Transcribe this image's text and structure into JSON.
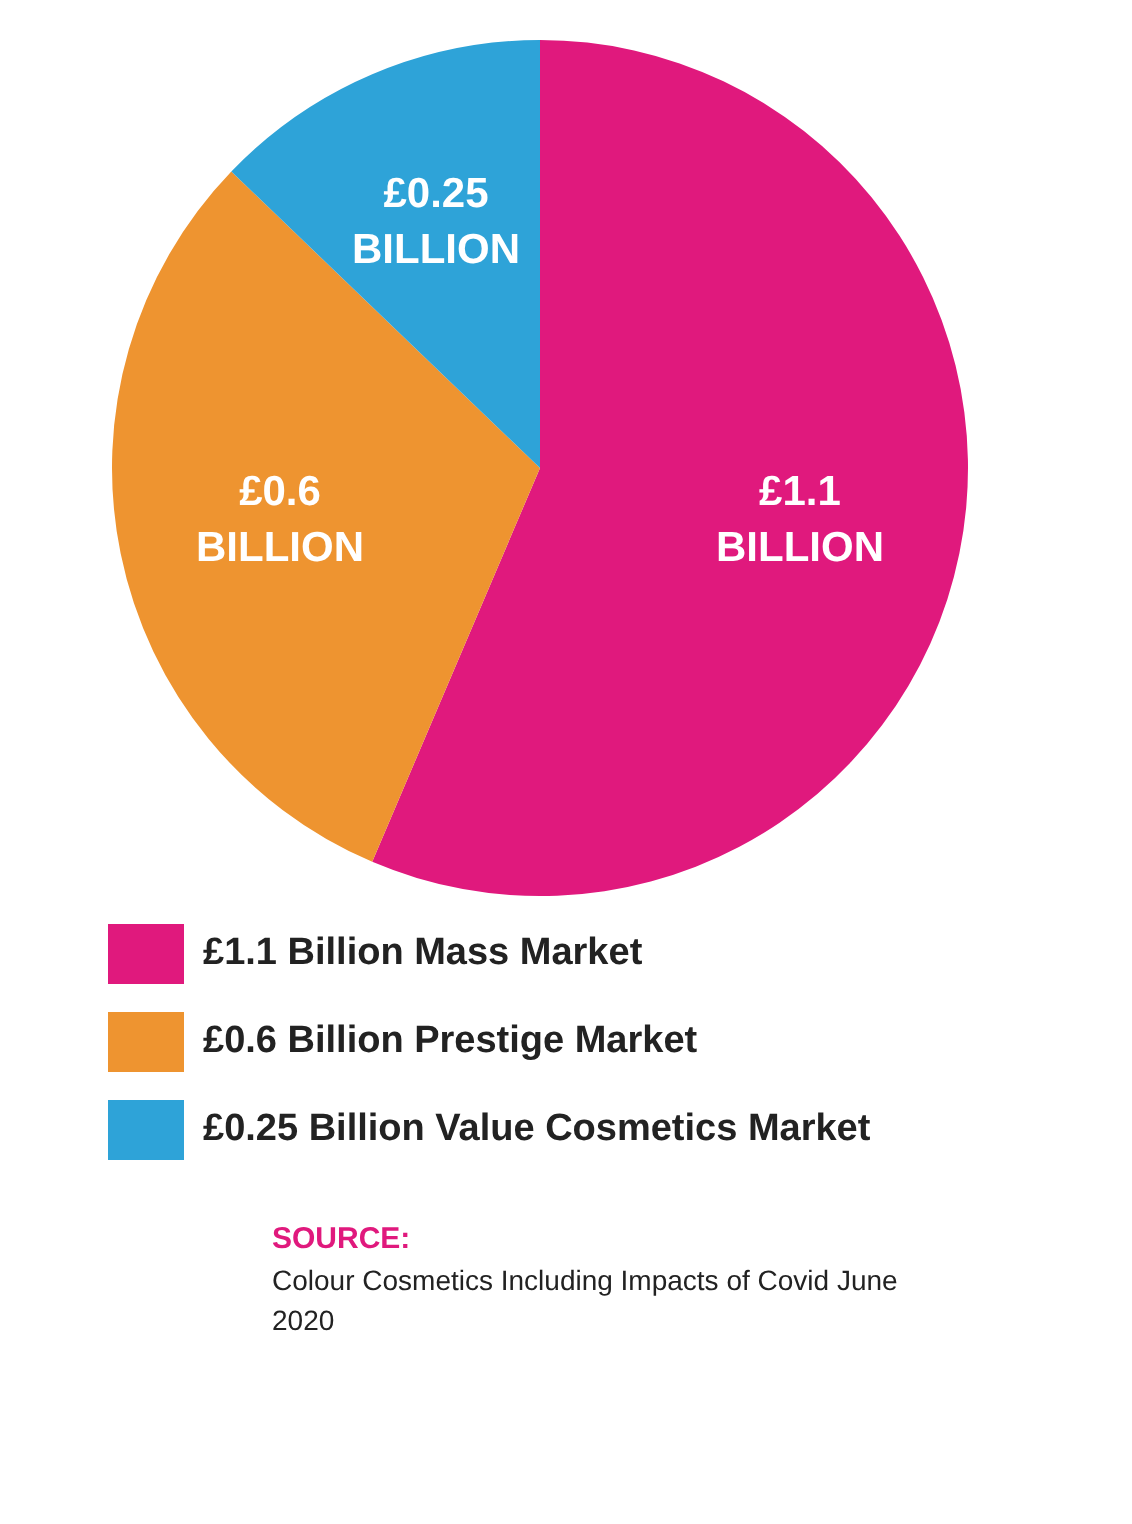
{
  "chart_data": {
    "type": "pie",
    "categories": [
      "£1.1 Billion Mass Market",
      "£0.6 Billion Prestige Market",
      "£0.25 Billion Value Cosmetics Market"
    ],
    "values": [
      1.1,
      0.6,
      0.25
    ],
    "colors": [
      "#e0197d",
      "#ee9430",
      "#2ea3d8"
    ],
    "value_labels": [
      "£1.1 BILLION",
      "£0.6 BILLION",
      "£0.25 BILLION"
    ],
    "legend": "bottom",
    "annotations": [
      "SOURCE:",
      "Colour Cosmetics Including Impacts of Covid June 2020"
    ]
  }
}
